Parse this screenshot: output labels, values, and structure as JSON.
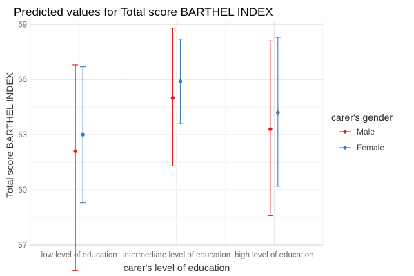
{
  "chart_data": {
    "type": "scatter",
    "title": "Predicted values for Total score BARTHEL INDEX",
    "xlabel": "carer's level of education",
    "ylabel": "Total score BARTHEL INDEX",
    "categories": [
      "low level of education",
      "intermediate level of education",
      "high level of education"
    ],
    "ylim": [
      57,
      69.2
    ],
    "yticks": [
      57,
      60,
      63,
      66,
      69
    ],
    "grid": true,
    "legend": {
      "title": "carer's gender",
      "position": "right"
    },
    "series": [
      {
        "name": "Male",
        "color": "#e41a1c",
        "values": [
          62.1,
          65.0,
          63.3
        ],
        "lower": [
          55.6,
          61.3,
          58.6
        ],
        "upper": [
          66.8,
          68.8,
          68.1
        ]
      },
      {
        "name": "Female",
        "color": "#377eb8",
        "values": [
          63.0,
          65.9,
          64.2
        ],
        "lower": [
          59.3,
          63.6,
          60.2
        ],
        "upper": [
          66.7,
          68.2,
          68.3
        ]
      }
    ]
  }
}
